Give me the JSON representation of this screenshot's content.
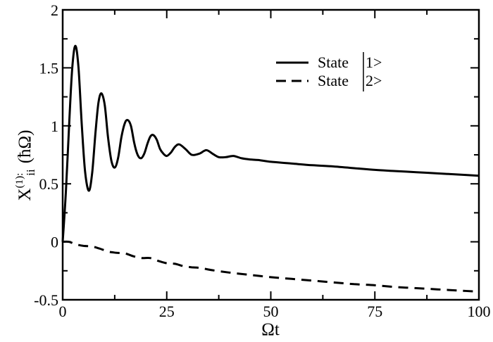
{
  "chart_data": {
    "type": "line",
    "title": "",
    "xlabel": "Ωt",
    "ylabel_main": "X",
    "ylabel_sup": "(1)",
    "ylabel_sub": "ii",
    "ylabel_unit": "(ħΩ)",
    "xlim": [
      0,
      100
    ],
    "ylim": [
      -0.5,
      2
    ],
    "x_ticks": [
      0,
      25,
      50,
      75,
      100
    ],
    "x_tick_labels": [
      "0",
      "25",
      "50",
      "75",
      "100"
    ],
    "x_minor_ticks": [
      12.5,
      37.5,
      62.5,
      87.5
    ],
    "y_ticks": [
      -0.5,
      0,
      0.5,
      1,
      1.5,
      2
    ],
    "y_tick_labels": [
      "-0.5",
      "0",
      "0.5",
      "1",
      "1.5",
      "2"
    ],
    "y_minor_ticks": [
      -0.25,
      0.25,
      0.75,
      1.25,
      1.75
    ],
    "grid": false,
    "legend_position": "upper right",
    "series": [
      {
        "name": "State |1>",
        "style": "solid",
        "color": "#000000",
        "x": [
          0,
          0.8,
          1.6,
          2.3,
          3.05,
          3.8,
          4.6,
          5.4,
          6.3,
          7.1,
          7.9,
          8.6,
          9.3,
          10.1,
          10.9,
          11.7,
          12.5,
          13.3,
          14.1,
          14.9,
          15.6,
          16.4,
          17.2,
          18.0,
          18.8,
          19.6,
          20.4,
          21.1,
          21.8,
          22.6,
          23.4,
          24.2,
          25.0,
          26.0,
          27.0,
          28.0,
          29.5,
          31.0,
          32.8,
          34.5,
          36.0,
          37.5,
          39.2,
          41.0,
          43.0,
          45.0,
          47.0,
          50.0,
          55.0,
          60.0,
          65.0,
          70.0,
          75.0,
          80.0,
          85.0,
          90.0,
          95.0,
          100.0
        ],
        "y": [
          0.0,
          0.45,
          1.05,
          1.5,
          1.69,
          1.5,
          1.0,
          0.6,
          0.44,
          0.6,
          0.95,
          1.2,
          1.28,
          1.18,
          0.9,
          0.7,
          0.64,
          0.72,
          0.9,
          1.02,
          1.05,
          1.0,
          0.85,
          0.75,
          0.72,
          0.76,
          0.85,
          0.91,
          0.92,
          0.88,
          0.8,
          0.76,
          0.74,
          0.77,
          0.82,
          0.84,
          0.8,
          0.75,
          0.76,
          0.79,
          0.76,
          0.73,
          0.73,
          0.74,
          0.72,
          0.71,
          0.705,
          0.69,
          0.675,
          0.66,
          0.65,
          0.635,
          0.62,
          0.61,
          0.6,
          0.59,
          0.58,
          0.57
        ]
      },
      {
        "name": "State |2>",
        "style": "dashed",
        "color": "#000000",
        "x": [
          0,
          1.5,
          3.0,
          5.0,
          7.0,
          9.0,
          11.0,
          13.0,
          15.0,
          17.0,
          19.0,
          21.0,
          23.0,
          25.0,
          27.0,
          29.0,
          31.0,
          33.0,
          36.0,
          40.0,
          45.0,
          50.0,
          55.0,
          60.0,
          65.0,
          70.0,
          75.0,
          80.0,
          85.0,
          90.0,
          95.0,
          100.0
        ],
        "y": [
          0.0,
          0.0,
          -0.02,
          -0.035,
          -0.04,
          -0.06,
          -0.085,
          -0.095,
          -0.1,
          -0.125,
          -0.14,
          -0.14,
          -0.165,
          -0.185,
          -0.19,
          -0.21,
          -0.22,
          -0.225,
          -0.245,
          -0.265,
          -0.285,
          -0.305,
          -0.32,
          -0.335,
          -0.35,
          -0.365,
          -0.375,
          -0.39,
          -0.4,
          -0.41,
          -0.42,
          -0.43
        ]
      }
    ]
  },
  "legend": {
    "items": [
      {
        "label_prefix": "State ",
        "ket": "1>"
      },
      {
        "label_prefix": "State ",
        "ket": "2>"
      }
    ]
  },
  "colors": {
    "line": "#000000",
    "background": "#ffffff"
  }
}
